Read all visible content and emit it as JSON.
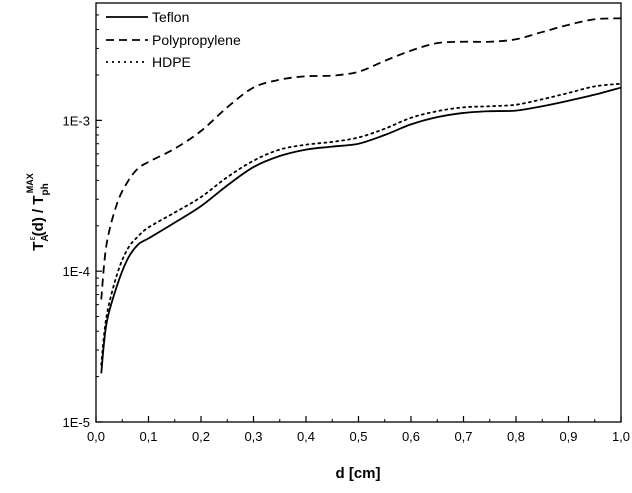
{
  "chart_data": {
    "type": "line",
    "xlabel": "d [cm]",
    "ylabel": {
      "main": "T",
      "sub1": "A",
      "sup1": "ε",
      "rest": "(d) / T",
      "sub2": "ph",
      "sup2": "MAX"
    },
    "xlim": [
      0.0,
      1.0
    ],
    "ylim": [
      1e-05,
      0.006
    ],
    "yscale": "log",
    "x_ticks": [
      "0,0",
      "0,1",
      "0,2",
      "0,3",
      "0,4",
      "0,5",
      "0,6",
      "0,7",
      "0,8",
      "0,9",
      "1,0"
    ],
    "y_ticks": [
      {
        "value": 1e-05,
        "label": "1E-5"
      },
      {
        "value": 0.0001,
        "label": "1E-4"
      },
      {
        "value": 0.001,
        "label": "1E-3"
      }
    ],
    "grid": false,
    "legend_position": "top-left",
    "series": [
      {
        "name": "Teflon",
        "style": "solid",
        "x": [
          0.01,
          0.02,
          0.04,
          0.06,
          0.08,
          0.1,
          0.15,
          0.2,
          0.25,
          0.3,
          0.35,
          0.4,
          0.45,
          0.5,
          0.55,
          0.6,
          0.65,
          0.7,
          0.75,
          0.8,
          0.85,
          0.9,
          0.95,
          1.0
        ],
        "y": [
          2.1e-05,
          4.5e-05,
          8e-05,
          0.00012,
          0.00015,
          0.000165,
          0.00021,
          0.00027,
          0.00037,
          0.00049,
          0.00058,
          0.00064,
          0.00067,
          0.0007,
          0.0008,
          0.00094,
          0.00105,
          0.00112,
          0.00115,
          0.00116,
          0.00124,
          0.00135,
          0.00148,
          0.00165
        ]
      },
      {
        "name": "Polypropylene",
        "style": "dashed",
        "x": [
          0.01,
          0.02,
          0.04,
          0.06,
          0.08,
          0.1,
          0.15,
          0.2,
          0.25,
          0.3,
          0.35,
          0.4,
          0.45,
          0.5,
          0.55,
          0.6,
          0.65,
          0.7,
          0.75,
          0.8,
          0.85,
          0.9,
          0.95,
          1.0
        ],
        "y": [
          6.5e-05,
          0.00015,
          0.00028,
          0.00039,
          0.00048,
          0.00053,
          0.00065,
          0.00085,
          0.00122,
          0.00165,
          0.00186,
          0.00196,
          0.00198,
          0.0021,
          0.00248,
          0.0029,
          0.00325,
          0.00332,
          0.00332,
          0.00345,
          0.00385,
          0.0043,
          0.00468,
          0.00475
        ]
      },
      {
        "name": "HDPE",
        "style": "dotted",
        "x": [
          0.01,
          0.02,
          0.04,
          0.06,
          0.08,
          0.1,
          0.15,
          0.2,
          0.25,
          0.3,
          0.35,
          0.4,
          0.45,
          0.5,
          0.55,
          0.6,
          0.65,
          0.7,
          0.75,
          0.8,
          0.85,
          0.9,
          0.95,
          1.0
        ],
        "y": [
          2.4e-05,
          5e-05,
          9.5e-05,
          0.00014,
          0.00017,
          0.000195,
          0.000245,
          0.00031,
          0.00042,
          0.00054,
          0.00064,
          0.00069,
          0.00072,
          0.00077,
          0.00088,
          0.00104,
          0.00115,
          0.00122,
          0.00124,
          0.00127,
          0.00138,
          0.00152,
          0.00168,
          0.00175
        ]
      }
    ]
  }
}
